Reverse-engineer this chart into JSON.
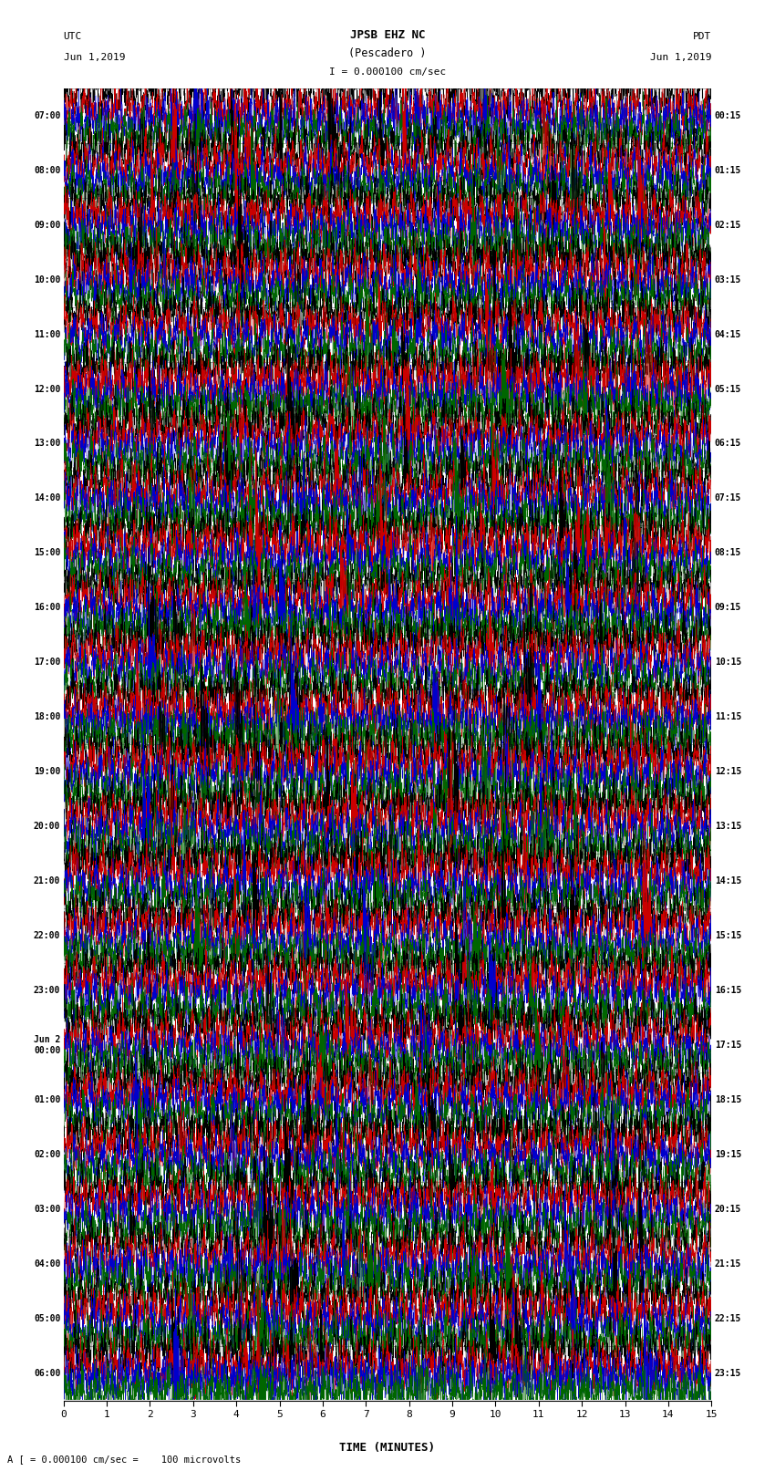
{
  "title_line1": "JPSB EHZ NC",
  "title_line2": "(Pescadero )",
  "scale_text": "I = 0.000100 cm/sec",
  "utc_label": "UTC",
  "pdt_label": "PDT",
  "date_left": "Jun 1,2019",
  "date_right": "Jun 1,2019",
  "bottom_label": "A [ = 0.000100 cm/sec =    100 microvolts",
  "xlabel": "TIME (MINUTES)",
  "left_times": [
    "07:00",
    "08:00",
    "09:00",
    "10:00",
    "11:00",
    "12:00",
    "13:00",
    "14:00",
    "15:00",
    "16:00",
    "17:00",
    "18:00",
    "19:00",
    "20:00",
    "21:00",
    "22:00",
    "23:00",
    "Jun 2\n00:00",
    "01:00",
    "02:00",
    "03:00",
    "04:00",
    "05:00",
    "06:00"
  ],
  "right_times": [
    "00:15",
    "01:15",
    "02:15",
    "03:15",
    "04:15",
    "05:15",
    "06:15",
    "07:15",
    "08:15",
    "09:15",
    "10:15",
    "11:15",
    "12:15",
    "13:15",
    "14:15",
    "15:15",
    "16:15",
    "17:15",
    "18:15",
    "19:15",
    "20:15",
    "21:15",
    "22:15",
    "23:15"
  ],
  "n_rows": 24,
  "traces_per_row": 4,
  "trace_colors": [
    "#000000",
    "#cc0000",
    "#0000cc",
    "#006600"
  ],
  "x_ticks": [
    0,
    1,
    2,
    3,
    4,
    5,
    6,
    7,
    8,
    9,
    10,
    11,
    12,
    13,
    14,
    15
  ],
  "x_min": 0,
  "x_max": 15,
  "fig_width": 8.5,
  "fig_height": 16.13,
  "bg_color": "white",
  "seed": 42
}
